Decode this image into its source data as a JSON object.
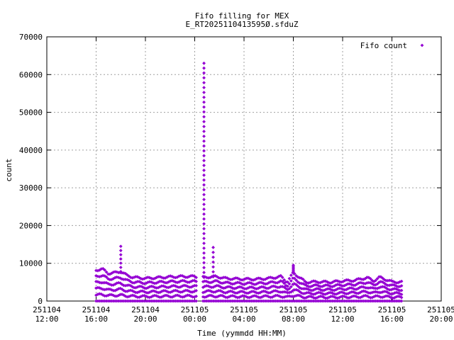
{
  "chart_data": {
    "type": "scatter",
    "title_line1": "Fifo filling for MEX",
    "title_line2": "E_RT2025110413595Ø.sfduZ",
    "xlabel": "Time (yymmdd HH:MM)",
    "ylabel": "count",
    "xlim": [
      "251104 12:00",
      "251105 20:00"
    ],
    "ylim": [
      0,
      70000
    ],
    "grid": true,
    "legend_position": "top-right",
    "y_ticks": [
      0,
      10000,
      20000,
      30000,
      40000,
      50000,
      60000,
      70000
    ],
    "x_ticks": [
      {
        "date": "251104",
        "time": "12:00"
      },
      {
        "date": "251104",
        "time": "16:00"
      },
      {
        "date": "251104",
        "time": "20:00"
      },
      {
        "date": "251105",
        "time": "00:00"
      },
      {
        "date": "251105",
        "time": "04:00"
      },
      {
        "date": "251105",
        "time": "08:00"
      },
      {
        "date": "251105",
        "time": "12:00"
      },
      {
        "date": "251105",
        "time": "16:00"
      },
      {
        "date": "251105",
        "time": "20:00"
      }
    ],
    "marker_color": "#9400d3",
    "series": [
      {
        "name": "Fifo count",
        "envelope": [
          [
            "251104 16:00",
            8200
          ],
          [
            "251104 16:30",
            8500
          ],
          [
            "251104 17:00",
            7300
          ],
          [
            "251104 17:30",
            7500
          ],
          [
            "251104 18:00",
            7800
          ],
          [
            "251104 18:30",
            6800
          ],
          [
            "251104 19:00",
            6300
          ],
          [
            "251104 20:00",
            6000
          ],
          [
            "251104 21:00",
            6200
          ],
          [
            "251104 22:00",
            6400
          ],
          [
            "251104 23:00",
            6500
          ],
          [
            "251105 00:00",
            6500
          ],
          [
            "251105 00:25",
            6200
          ],
          [
            "251105 01:45",
            6500
          ],
          [
            "251105 02:30",
            6000
          ],
          [
            "251105 04:00",
            5800
          ],
          [
            "251105 05:00",
            5800
          ],
          [
            "251105 06:00",
            6000
          ],
          [
            "251105 07:00",
            6500
          ],
          [
            "251105 07:30",
            5000
          ],
          [
            "251105 08:00",
            7500
          ],
          [
            "251105 09:00",
            5000
          ],
          [
            "251105 10:00",
            5100
          ],
          [
            "251105 11:00",
            5000
          ],
          [
            "251105 12:00",
            5300
          ],
          [
            "251105 13:00",
            5500
          ],
          [
            "251105 14:00",
            6200
          ],
          [
            "251105 14:30",
            5300
          ],
          [
            "251105 15:00",
            6300
          ],
          [
            "251105 16:00",
            5100
          ],
          [
            "251105 16:50",
            5000
          ]
        ],
        "spikes": [
          {
            "x": "251104 18:00",
            "peak": 14500
          },
          {
            "x": "251105 00:45",
            "peak": 63000
          },
          {
            "x": "251105 01:30",
            "peak": 14200
          },
          {
            "x": "251105 08:00",
            "peak": 9500
          }
        ],
        "gap": [
          "251105 00:15",
          "251105 00:35"
        ],
        "x_start": "251104 16:00",
        "x_end": "251105 16:50"
      }
    ]
  }
}
